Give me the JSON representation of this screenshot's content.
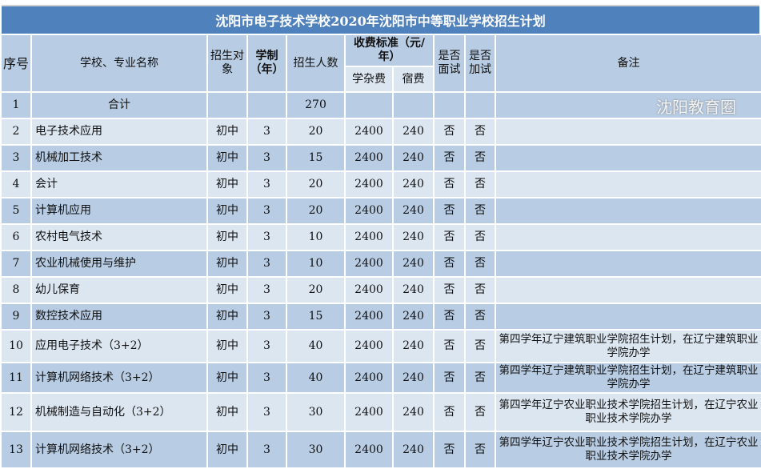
{
  "title": "沈阳市电子技术学校2020年沈阳市中等职业学校招生计划",
  "headers": {
    "no": "序号",
    "name": "学校、专业名称",
    "target": "招生对象",
    "years": "学制（年）",
    "count": "招生人数",
    "fee": "收费标准（元/年）",
    "tuition": "学杂费",
    "dorm": "宿费",
    "interview": "是否面试",
    "extra": "是否加试",
    "note": "备注"
  },
  "rows": [
    {
      "no": "1",
      "name": "合计",
      "target": "",
      "years": "",
      "count": "270",
      "tuition": "",
      "dorm": "",
      "interview": "",
      "extra": "",
      "note": ""
    },
    {
      "no": "2",
      "name": "电子技术应用",
      "target": "初中",
      "years": "3",
      "count": "20",
      "tuition": "2400",
      "dorm": "240",
      "interview": "否",
      "extra": "否",
      "note": ""
    },
    {
      "no": "3",
      "name": "机械加工技术",
      "target": "初中",
      "years": "3",
      "count": "15",
      "tuition": "2400",
      "dorm": "240",
      "interview": "否",
      "extra": "否",
      "note": ""
    },
    {
      "no": "4",
      "name": "会计",
      "target": "初中",
      "years": "3",
      "count": "20",
      "tuition": "2400",
      "dorm": "240",
      "interview": "否",
      "extra": "否",
      "note": ""
    },
    {
      "no": "5",
      "name": "计算机应用",
      "target": "初中",
      "years": "3",
      "count": "20",
      "tuition": "2400",
      "dorm": "240",
      "interview": "否",
      "extra": "否",
      "note": ""
    },
    {
      "no": "6",
      "name": "农村电气技术",
      "target": "初中",
      "years": "3",
      "count": "10",
      "tuition": "2400",
      "dorm": "240",
      "interview": "否",
      "extra": "否",
      "note": ""
    },
    {
      "no": "7",
      "name": "农业机械使用与维护",
      "target": "初中",
      "years": "3",
      "count": "10",
      "tuition": "2400",
      "dorm": "240",
      "interview": "否",
      "extra": "否",
      "note": ""
    },
    {
      "no": "8",
      "name": "幼儿保育",
      "target": "初中",
      "years": "3",
      "count": "20",
      "tuition": "2400",
      "dorm": "240",
      "interview": "否",
      "extra": "否",
      "note": ""
    },
    {
      "no": "9",
      "name": "数控技术应用",
      "target": "初中",
      "years": "3",
      "count": "15",
      "tuition": "2400",
      "dorm": "240",
      "interview": "否",
      "extra": "否",
      "note": ""
    },
    {
      "no": "10",
      "name": "应用电子技术（3+2）",
      "target": "初中",
      "years": "3",
      "count": "40",
      "tuition": "2400",
      "dorm": "240",
      "interview": "否",
      "extra": "否",
      "note": "第四学年辽宁建筑职业学院招生计划，在辽宁建筑职业学院办学"
    },
    {
      "no": "11",
      "name": "计算机网络技术（3+2）",
      "target": "初中",
      "years": "3",
      "count": "40",
      "tuition": "2400",
      "dorm": "240",
      "interview": "否",
      "extra": "否",
      "note": "第四学年辽宁建筑职业学院招生计划，在辽宁建筑职业学院办学"
    },
    {
      "no": "12",
      "name": "机械制造与自动化（3+2）",
      "target": "初中",
      "years": "3",
      "count": "30",
      "tuition": "2400",
      "dorm": "240",
      "interview": "否",
      "extra": "否",
      "note": "第四学年辽宁农业职业技术学院招生计划，在辽宁农业职业技术学院办学"
    },
    {
      "no": "13",
      "name": "计算机网络技术（3+2）",
      "target": "初中",
      "years": "3",
      "count": "30",
      "tuition": "2400",
      "dorm": "240",
      "interview": "否",
      "extra": "否",
      "note": "第四学年辽宁农业职业技术学院招生计划，在辽宁农业职业技术学院办学"
    }
  ],
  "watermark": "沈阳教育圈"
}
